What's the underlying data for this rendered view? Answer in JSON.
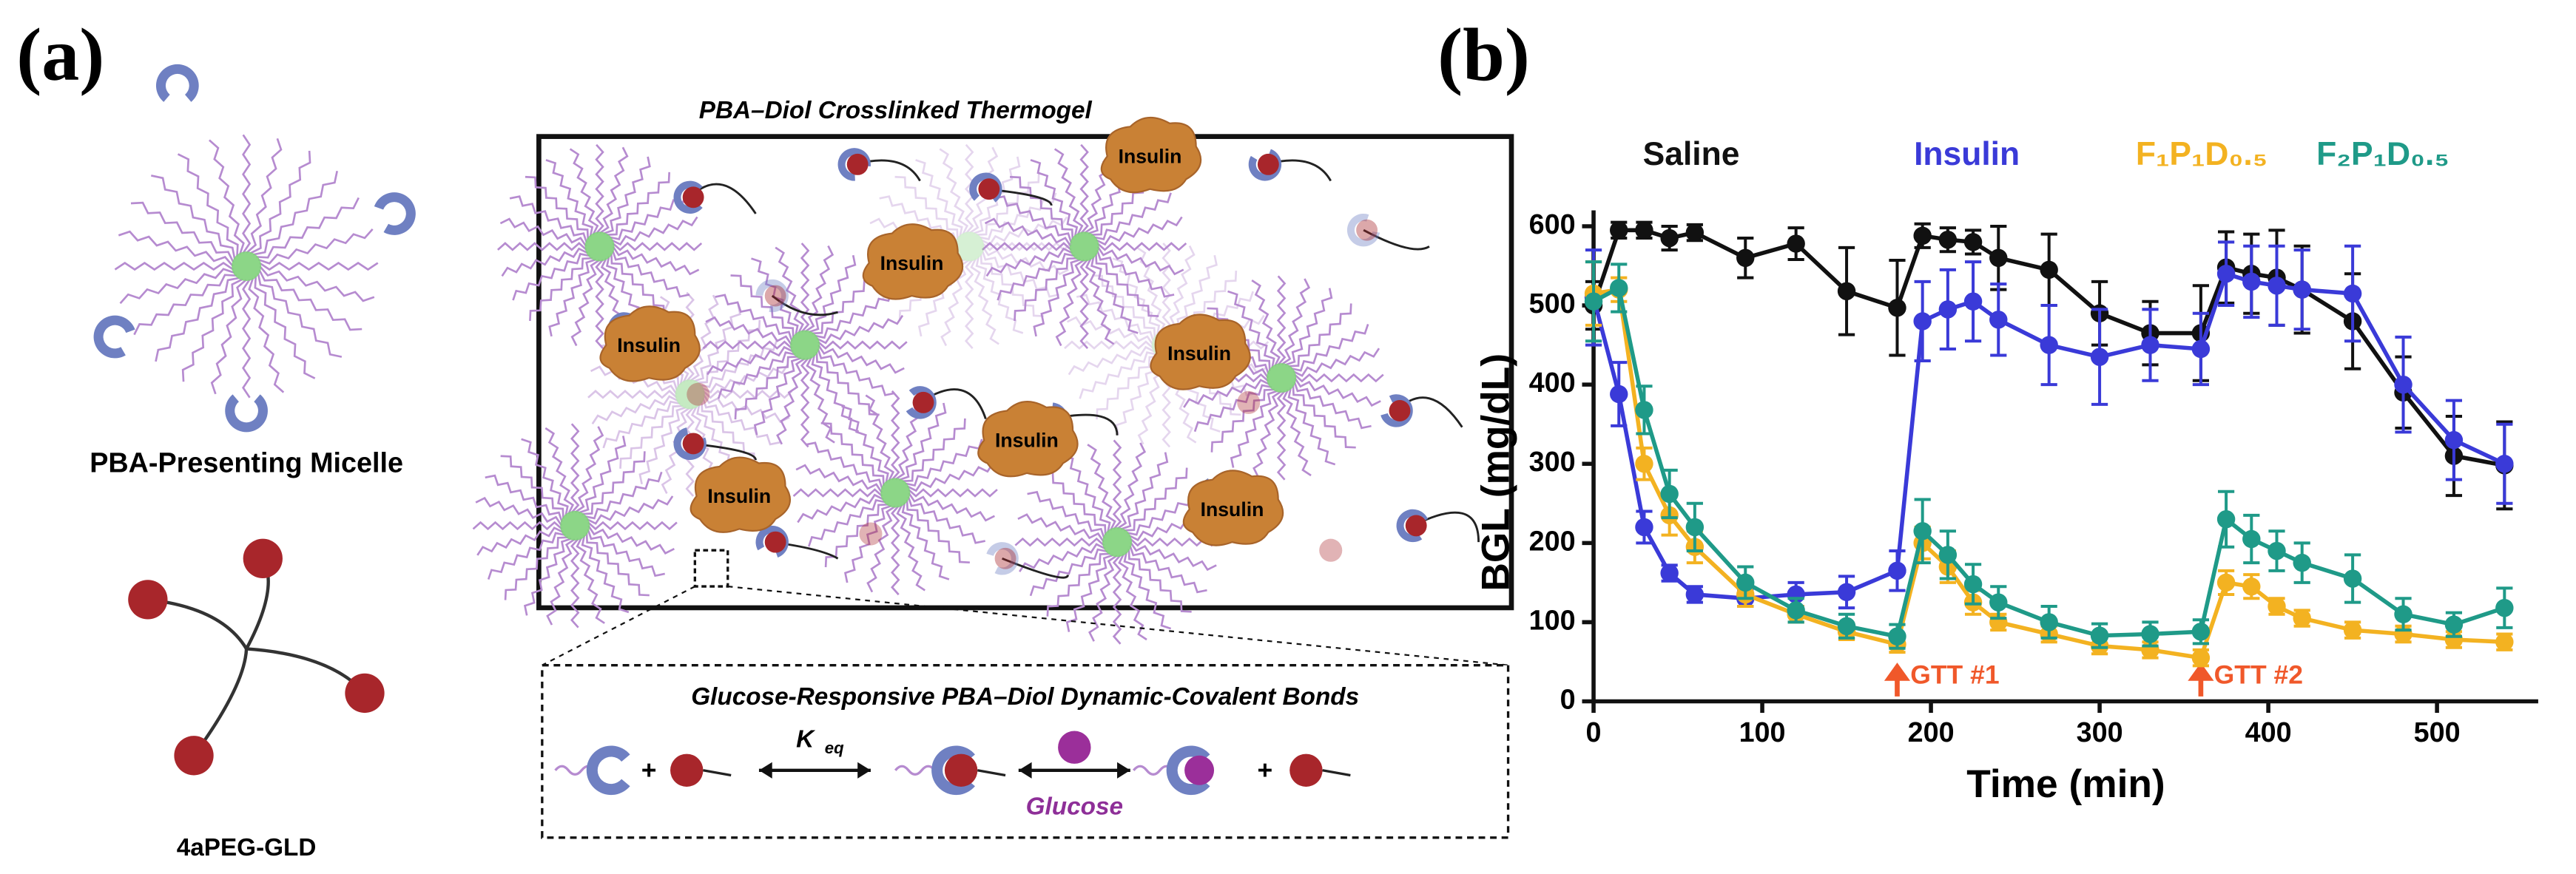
{
  "panels": {
    "a": "(a)",
    "b": "(b)"
  },
  "diagram": {
    "micelle_label": "PBA-Presenting Micelle",
    "star_label": "4aPEG-GLD",
    "gel_title": "PBA–Diol Crosslinked Thermogel",
    "insulin_label": "Insulin",
    "bond_title": "Glucose-Responsive PBA–Diol Dynamic-Covalent Bonds",
    "keq": "K",
    "keq_sub": "eq",
    "glucose": "Glucose",
    "plus": "+"
  },
  "chart_data": {
    "type": "line",
    "xlabel": "Time (min)",
    "ylabel": "BGL (mg/dL)",
    "x": [
      0,
      15,
      30,
      45,
      60,
      90,
      120,
      150,
      180,
      195,
      210,
      225,
      240,
      270,
      300,
      330,
      360,
      375,
      390,
      405,
      420,
      450,
      480,
      510,
      540
    ],
    "xlim": [
      0,
      560
    ],
    "xticks": [
      0,
      100,
      200,
      300,
      400,
      500
    ],
    "ylim": [
      0,
      620
    ],
    "yticks": [
      0,
      100,
      200,
      300,
      400,
      500,
      600
    ],
    "series": [
      {
        "name": "Saline",
        "color": "#111111",
        "values": [
          500,
          595,
          595,
          585,
          592,
          560,
          578,
          518,
          497,
          588,
          583,
          580,
          560,
          545,
          490,
          465,
          465,
          548,
          540,
          535,
          520,
          480,
          390,
          310,
          298
        ],
        "errors": [
          30,
          10,
          10,
          15,
          10,
          25,
          20,
          55,
          60,
          15,
          15,
          15,
          40,
          45,
          40,
          40,
          60,
          45,
          50,
          60,
          55,
          60,
          45,
          50,
          55
        ]
      },
      {
        "name": "Insulin",
        "color": "#3a3ad8",
        "values": [
          510,
          388,
          220,
          162,
          135,
          130,
          135,
          138,
          165,
          480,
          495,
          505,
          482,
          450,
          435,
          450,
          445,
          540,
          530,
          525,
          520,
          515,
          400,
          330,
          300
        ],
        "errors": [
          60,
          40,
          20,
          10,
          10,
          10,
          15,
          20,
          25,
          50,
          50,
          50,
          45,
          50,
          60,
          45,
          45,
          40,
          45,
          50,
          50,
          60,
          60,
          50,
          50
        ]
      },
      {
        "name": "F₁P₁D₀.₅",
        "color": "#f3b221",
        "values": [
          515,
          520,
          300,
          235,
          195,
          135,
          110,
          88,
          72,
          200,
          170,
          125,
          100,
          85,
          70,
          65,
          55,
          150,
          145,
          120,
          105,
          90,
          85,
          78,
          75
        ],
        "errors": [
          40,
          15,
          20,
          25,
          20,
          15,
          10,
          10,
          10,
          20,
          20,
          15,
          10,
          10,
          10,
          10,
          10,
          15,
          15,
          10,
          10,
          10,
          10,
          10,
          10
        ]
      },
      {
        "name": "F₂P₁D₀.₅",
        "color": "#1f9a88",
        "values": [
          505,
          522,
          368,
          262,
          220,
          150,
          115,
          95,
          82,
          215,
          185,
          148,
          125,
          100,
          83,
          85,
          88,
          230,
          205,
          190,
          175,
          155,
          110,
          97,
          118
        ],
        "errors": [
          50,
          30,
          30,
          30,
          30,
          20,
          15,
          15,
          15,
          40,
          30,
          25,
          20,
          20,
          15,
          15,
          15,
          35,
          30,
          25,
          25,
          30,
          20,
          15,
          25
        ]
      }
    ],
    "annotations": [
      {
        "text": "GTT #1",
        "x": 180
      },
      {
        "text": "GTT #2",
        "x": 360
      }
    ],
    "annotation_color": "#f0582a"
  }
}
